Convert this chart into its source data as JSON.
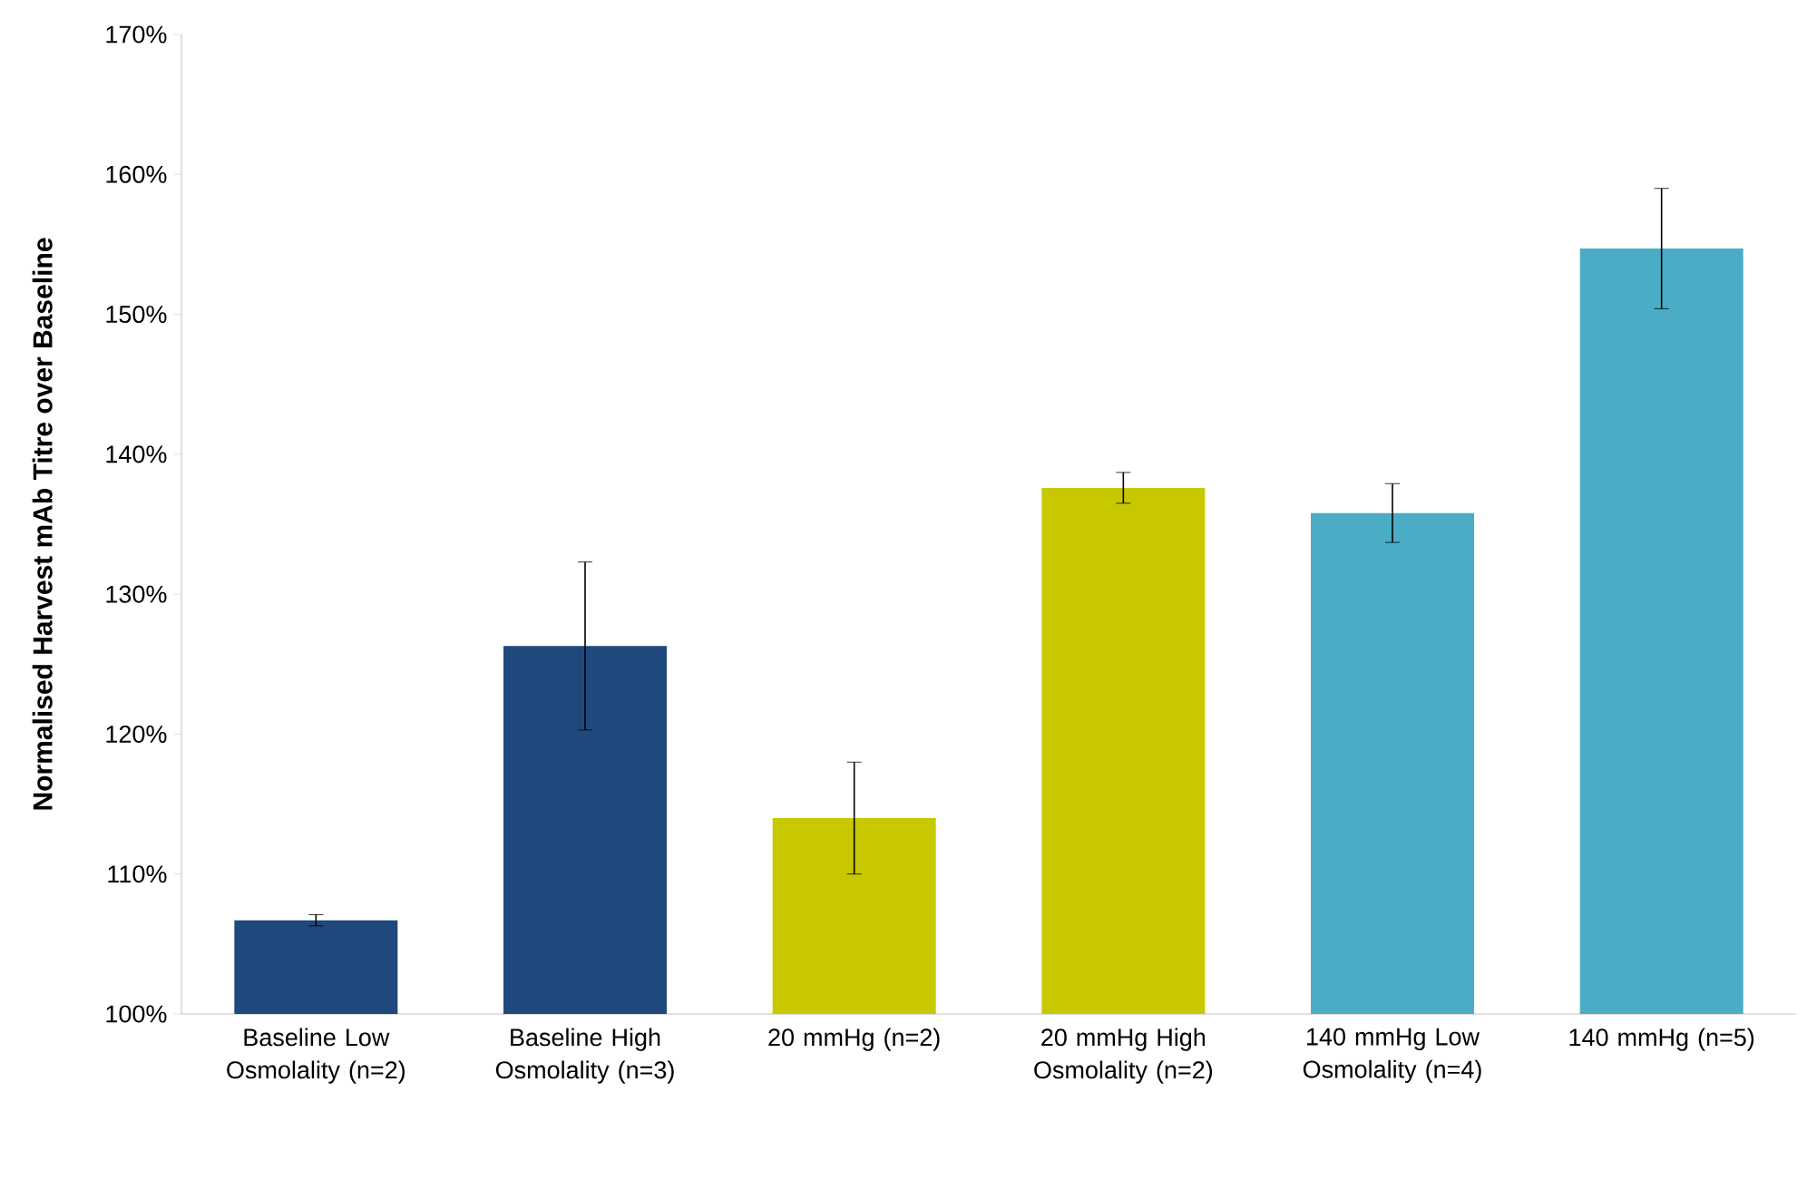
{
  "chart_data": {
    "type": "bar",
    "ylabel": "Normalised  Harvest mAb Titre over Baseline",
    "categories": [
      "Baseline Low Osmolality (n=2)",
      "Baseline High Osmolality (n=3)",
      "20 mmHg (n=2)",
      "20 mmHg High Osmolality (n=2)",
      "140 mmHg Low Osmolality (n=4)",
      "140 mmHg (n=5)"
    ],
    "values": [
      106.7,
      126.3,
      114.0,
      137.6,
      135.8,
      154.7
    ],
    "errors": [
      0.4,
      6.0,
      4.0,
      1.1,
      2.1,
      4.3
    ],
    "colors": [
      "#1f497d",
      "#1f497d",
      "#c8c800",
      "#c8c800",
      "#4bacc6",
      "#4bacc6"
    ],
    "ylim": [
      100,
      170
    ],
    "yticks": [
      {
        "value": 100,
        "label": "100%"
      },
      {
        "value": 110,
        "label": "110%"
      },
      {
        "value": 120,
        "label": "120%"
      },
      {
        "value": 130,
        "label": "130%"
      },
      {
        "value": 140,
        "label": "140%"
      },
      {
        "value": 150,
        "label": "150%"
      },
      {
        "value": 160,
        "label": "160%"
      },
      {
        "value": 170,
        "label": "170%"
      }
    ]
  }
}
